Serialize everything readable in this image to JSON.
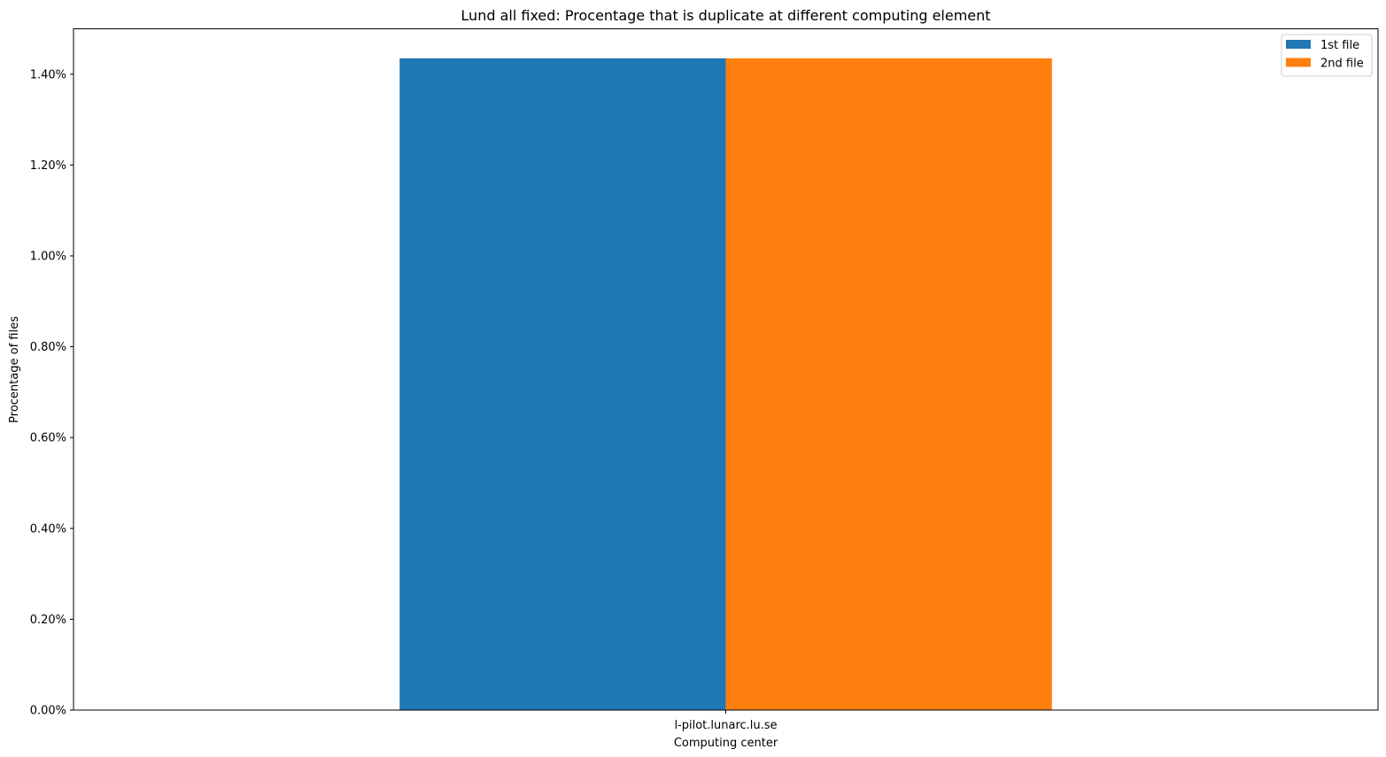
{
  "chart_data": {
    "type": "bar",
    "title": "Lund all fixed: Procentage that is duplicate at different computing element",
    "xlabel": "Computing center",
    "ylabel": "Procentage of files",
    "categories": [
      "l-pilot.lunarc.lu.se"
    ],
    "series": [
      {
        "name": "1st file",
        "values": [
          1.435
        ],
        "color": "#1f77b4"
      },
      {
        "name": "2nd file",
        "values": [
          1.435
        ],
        "color": "#ff7f0e"
      }
    ],
    "ylim": [
      0,
      1.5
    ],
    "yticks": [
      0,
      0.2,
      0.4,
      0.6,
      0.8,
      1.0,
      1.2,
      1.4
    ],
    "ytick_labels": [
      "0.00%",
      "0.20%",
      "0.40%",
      "0.60%",
      "0.80%",
      "1.00%",
      "1.20%",
      "1.40%"
    ],
    "grid": false,
    "legend_position": "top-right"
  }
}
